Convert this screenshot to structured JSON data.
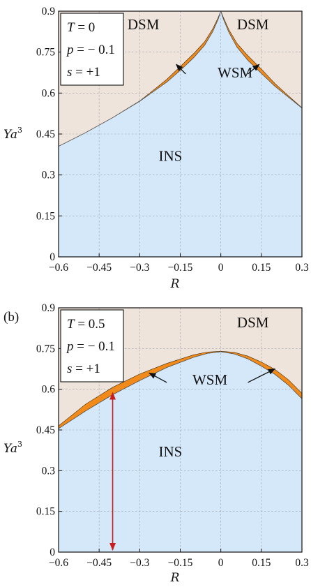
{
  "chart_data": [
    {
      "type": "area",
      "panel_label": "",
      "xlabel": "R",
      "ylabel": "Ya",
      "ylabel_sup": "3",
      "xlim": [
        -0.6,
        0.3
      ],
      "ylim": [
        0,
        0.9
      ],
      "xticks": [
        "−0.6",
        "−0.45",
        "−0.3",
        "−0.15",
        "0",
        "0.15",
        "0.3"
      ],
      "yticks": [
        "0",
        "0.15",
        "0.3",
        "0.45",
        "0.6",
        "0.75",
        "0.9"
      ],
      "grid": true,
      "params": [
        {
          "sym": "T",
          "val": "= 0"
        },
        {
          "sym": "p",
          "val": "= − 0.1"
        },
        {
          "sym": "s",
          "val": "= +1"
        }
      ],
      "regions": {
        "dsm_left": "DSM",
        "dsm_right": "DSM",
        "wsm": "WSM",
        "ins": "INS"
      },
      "colors": {
        "dsm": "#efe4dc",
        "ins": "#d5e8fa",
        "wsm": "#f28a1a",
        "grid": "#9aa0a8"
      },
      "lower_boundary": {
        "x": [
          -0.6,
          -0.5,
          -0.4,
          -0.3,
          -0.25,
          -0.2,
          -0.15,
          -0.1,
          -0.06,
          -0.03,
          -0.01,
          0,
          0.01,
          0.03,
          0.06,
          0.1,
          0.15,
          0.2,
          0.25,
          0.3
        ],
        "y": [
          0.405,
          0.455,
          0.51,
          0.57,
          0.605,
          0.64,
          0.683,
          0.73,
          0.775,
          0.825,
          0.87,
          0.9,
          0.87,
          0.822,
          0.768,
          0.72,
          0.672,
          0.625,
          0.585,
          0.545
        ]
      },
      "upper_boundary": {
        "x": [
          -0.6,
          -0.5,
          -0.4,
          -0.3,
          -0.25,
          -0.2,
          -0.15,
          -0.1,
          -0.06,
          -0.03,
          -0.01,
          0,
          0.01,
          0.03,
          0.06,
          0.1,
          0.15,
          0.2,
          0.25,
          0.3
        ],
        "y": [
          0.405,
          0.455,
          0.51,
          0.571,
          0.61,
          0.65,
          0.697,
          0.745,
          0.788,
          0.835,
          0.876,
          0.9,
          0.876,
          0.832,
          0.782,
          0.737,
          0.688,
          0.635,
          0.59,
          0.546
        ]
      },
      "arrows": [
        {
          "from": [
            -0.13,
            0.67
          ],
          "to": [
            -0.165,
            0.705
          ]
        },
        {
          "from": [
            0.1,
            0.67
          ],
          "to": [
            0.142,
            0.705
          ]
        }
      ],
      "region_positions": {
        "dsm_left": [
          -0.345,
          0.833
        ],
        "dsm_right": [
          0.06,
          0.833
        ],
        "wsm": [
          -0.012,
          0.657
        ],
        "ins": [
          -0.23,
          0.352
        ]
      },
      "legend_placement": "top-left"
    },
    {
      "type": "area",
      "panel_label": "(b)",
      "xlabel": "R",
      "ylabel": "Ya",
      "ylabel_sup": "3",
      "xlim": [
        -0.6,
        0.3
      ],
      "ylim": [
        0,
        0.9
      ],
      "xticks": [
        "−0.6",
        "−0.45",
        "−0.3",
        "−0.15",
        "0",
        "0.15",
        "0.3"
      ],
      "yticks": [
        "0",
        "0.15",
        "0.3",
        "0.45",
        "0.6",
        "0.75",
        "0.9"
      ],
      "grid": true,
      "params": [
        {
          "sym": "T",
          "val": "= 0.5"
        },
        {
          "sym": "p",
          "val": "= − 0.1"
        },
        {
          "sym": "s",
          "val": "= +1"
        }
      ],
      "regions": {
        "dsm": "DSM",
        "wsm": "WSM",
        "ins": "INS"
      },
      "colors": {
        "dsm": "#efe4dc",
        "ins": "#d5e8fa",
        "wsm": "#f28a1a",
        "grid": "#9aa0a8",
        "arrow_red": "#c81e1e"
      },
      "lower_boundary": {
        "x": [
          -0.6,
          -0.5,
          -0.4,
          -0.3,
          -0.2,
          -0.1,
          -0.05,
          0,
          0.05,
          0.1,
          0.15,
          0.2,
          0.25,
          0.3
        ],
        "y": [
          0.455,
          0.52,
          0.58,
          0.632,
          0.68,
          0.718,
          0.732,
          0.738,
          0.73,
          0.712,
          0.685,
          0.655,
          0.615,
          0.565
        ]
      },
      "upper_boundary": {
        "x": [
          -0.6,
          -0.5,
          -0.4,
          -0.3,
          -0.2,
          -0.1,
          -0.05,
          0,
          0.05,
          0.1,
          0.15,
          0.2,
          0.25,
          0.3
        ],
        "y": [
          0.465,
          0.545,
          0.607,
          0.656,
          0.695,
          0.727,
          0.737,
          0.74,
          0.736,
          0.722,
          0.7,
          0.673,
          0.635,
          0.585
        ]
      },
      "arrows": [
        {
          "from": [
            -0.2,
            0.625
          ],
          "to": [
            -0.265,
            0.66
          ]
        },
        {
          "from": [
            0.1,
            0.625
          ],
          "to": [
            0.2,
            0.675
          ]
        }
      ],
      "vertical_arrow": {
        "x": -0.4,
        "y_from": 0.0,
        "y_to": 0.595
      },
      "region_positions": {
        "dsm": [
          0.06,
          0.828
        ],
        "wsm": [
          -0.105,
          0.617
        ],
        "ins": [
          -0.23,
          0.352
        ]
      },
      "legend_placement": "top-left"
    }
  ]
}
